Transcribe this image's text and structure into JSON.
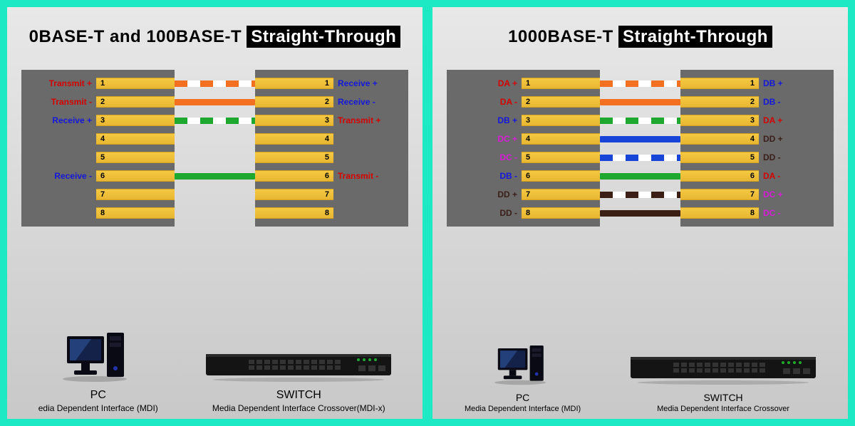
{
  "colors": {
    "frame": "#1de9c5",
    "panel_top": "#e8e8e8",
    "panel_bottom": "#c8c8c8",
    "connector": "#6a6a6a",
    "pin_gold": "#f0bd38",
    "red": "#d40000",
    "blue": "#1418d8",
    "magenta": "#d81bd8",
    "dark": "#3a2018",
    "wire_orange": "#f37021",
    "wire_green": "#1fa82f",
    "wire_blue": "#1844d8",
    "wire_brown": "#3b1f14"
  },
  "panels": [
    {
      "title_plain": "0BASE-T and 100BASE-T ",
      "title_highlight": "Straight-Through",
      "left_signals": [
        {
          "n": 1,
          "t": "Transmit +",
          "c": "#d40000"
        },
        {
          "n": 2,
          "t": "Transmit -",
          "c": "#d40000"
        },
        {
          "n": 3,
          "t": "Receive +",
          "c": "#1418d8"
        },
        {
          "n": 4,
          "t": "",
          "c": "#000"
        },
        {
          "n": 5,
          "t": "",
          "c": "#000"
        },
        {
          "n": 6,
          "t": "Receive -",
          "c": "#1418d8"
        },
        {
          "n": 7,
          "t": "",
          "c": "#000"
        },
        {
          "n": 8,
          "t": "",
          "c": "#000"
        }
      ],
      "right_signals": [
        {
          "n": 1,
          "t": "Receive +",
          "c": "#1418d8"
        },
        {
          "n": 2,
          "t": "Receive -",
          "c": "#1418d8"
        },
        {
          "n": 3,
          "t": "Transmit +",
          "c": "#d40000"
        },
        {
          "n": 4,
          "t": "",
          "c": "#000"
        },
        {
          "n": 5,
          "t": "",
          "c": "#000"
        },
        {
          "n": 6,
          "t": "Transmit -",
          "c": "#d40000"
        },
        {
          "n": 7,
          "t": "",
          "c": "#000"
        },
        {
          "n": 8,
          "t": "",
          "c": "#000"
        }
      ],
      "wires": [
        {
          "pin": 1,
          "style": "dashed",
          "color": "#f37021"
        },
        {
          "pin": 2,
          "style": "solid",
          "color": "#f37021"
        },
        {
          "pin": 3,
          "style": "dashed",
          "color": "#1fa82f"
        },
        {
          "pin": 6,
          "style": "solid",
          "color": "#1fa82f"
        }
      ],
      "pc_label": "PC",
      "pc_sub": "edia Dependent Interface (MDI)",
      "switch_label": "SWITCH",
      "switch_sub": "Media Dependent Interface Crossover(MDI-x)"
    },
    {
      "title_plain": "1000BASE-T ",
      "title_highlight": "Straight-Through",
      "left_signals": [
        {
          "n": 1,
          "t": "DA +",
          "c": "#d40000"
        },
        {
          "n": 2,
          "t": "DA -",
          "c": "#d40000"
        },
        {
          "n": 3,
          "t": "DB +",
          "c": "#1418d8"
        },
        {
          "n": 4,
          "t": "DC +",
          "c": "#d81bd8"
        },
        {
          "n": 5,
          "t": "DC -",
          "c": "#d81bd8"
        },
        {
          "n": 6,
          "t": "DB -",
          "c": "#1418d8"
        },
        {
          "n": 7,
          "t": "DD +",
          "c": "#3a2018"
        },
        {
          "n": 8,
          "t": "DD -",
          "c": "#3a2018"
        }
      ],
      "right_signals": [
        {
          "n": 1,
          "t": "DB +",
          "c": "#1418d8"
        },
        {
          "n": 2,
          "t": "DB -",
          "c": "#1418d8"
        },
        {
          "n": 3,
          "t": "DA +",
          "c": "#d40000"
        },
        {
          "n": 4,
          "t": "DD +",
          "c": "#3a2018"
        },
        {
          "n": 5,
          "t": "DD -",
          "c": "#3a2018"
        },
        {
          "n": 6,
          "t": "DA -",
          "c": "#d40000"
        },
        {
          "n": 7,
          "t": "DC +",
          "c": "#d81bd8"
        },
        {
          "n": 8,
          "t": "DC -",
          "c": "#d81bd8"
        }
      ],
      "wires": [
        {
          "pin": 1,
          "style": "dashed",
          "color": "#f37021"
        },
        {
          "pin": 2,
          "style": "solid",
          "color": "#f37021"
        },
        {
          "pin": 3,
          "style": "dashed",
          "color": "#1fa82f"
        },
        {
          "pin": 4,
          "style": "solid",
          "color": "#1844d8"
        },
        {
          "pin": 5,
          "style": "dashed",
          "color": "#1844d8"
        },
        {
          "pin": 6,
          "style": "solid",
          "color": "#1fa82f"
        },
        {
          "pin": 7,
          "style": "dashed",
          "color": "#3b1f14"
        },
        {
          "pin": 8,
          "style": "solid",
          "color": "#3b1f14"
        }
      ],
      "pc_label": "PC",
      "pc_sub": "Media Dependent Interface (MDI)",
      "switch_label": "SWITCH",
      "switch_sub": "Media Dependent Interface Crossover"
    }
  ]
}
